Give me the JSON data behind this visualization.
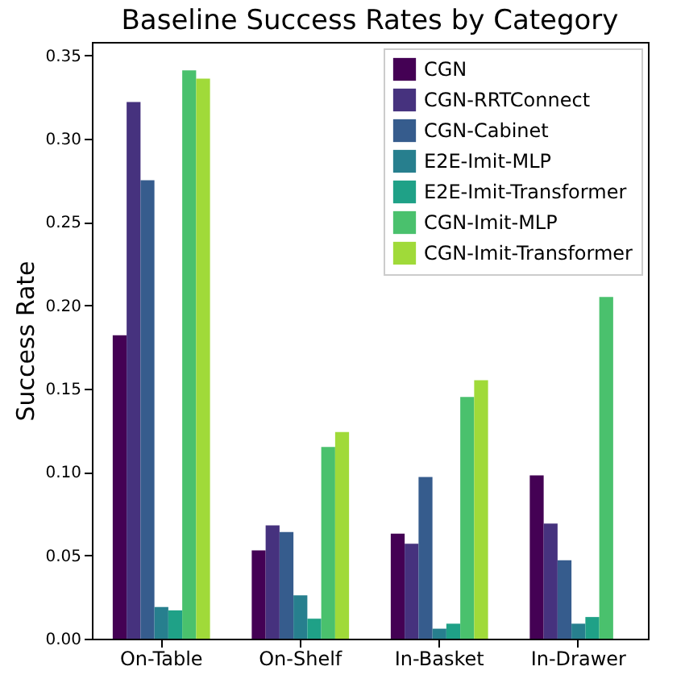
{
  "chart_data": {
    "type": "bar",
    "title": "Baseline Success Rates by Category",
    "ylabel": "Success Rate",
    "categories": [
      "On-Table",
      "On-Shelf",
      "In-Basket",
      "In-Drawer"
    ],
    "series": [
      {
        "name": "CGN",
        "color": "#440154",
        "values": [
          0.182,
          0.053,
          0.063,
          0.098
        ]
      },
      {
        "name": "CGN-RRTConnect",
        "color": "#46327e",
        "values": [
          0.322,
          0.068,
          0.057,
          0.069
        ]
      },
      {
        "name": "CGN-Cabinet",
        "color": "#365c8d",
        "values": [
          0.275,
          0.064,
          0.097,
          0.047
        ]
      },
      {
        "name": "E2E-Imit-MLP",
        "color": "#277f8e",
        "values": [
          0.019,
          0.026,
          0.006,
          0.009
        ]
      },
      {
        "name": "E2E-Imit-Transformer",
        "color": "#1fa187",
        "values": [
          0.017,
          0.012,
          0.009,
          0.013
        ]
      },
      {
        "name": "CGN-Imit-MLP",
        "color": "#4ac16d",
        "values": [
          0.341,
          0.115,
          0.145,
          0.205
        ]
      },
      {
        "name": "CGN-Imit-Transformer",
        "color": "#a0da39",
        "values": [
          0.336,
          0.124,
          0.155,
          null
        ]
      }
    ],
    "ylim": [
      0,
      0.358
    ],
    "yticks": [
      {
        "value": 0,
        "label": "0.00"
      },
      0.05,
      {
        "value": 0.1,
        "label": "0.10"
      },
      0.15,
      {
        "value": 0.2,
        "label": "0.20"
      },
      0.25,
      {
        "value": 0.3,
        "label": "0.30"
      },
      0.35
    ],
    "grid": false,
    "legend": "top right"
  }
}
